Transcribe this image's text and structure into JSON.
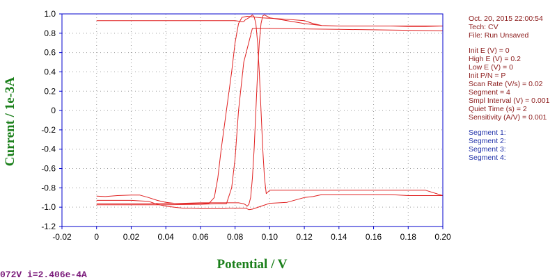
{
  "chart_data": {
    "type": "line",
    "xlabel": "Potential / V",
    "ylabel": "Current / 1e-3A",
    "xlim": [
      -0.02,
      0.2
    ],
    "ylim": [
      -1.2,
      1.0
    ],
    "x_ticks": [
      "-0.02",
      "0",
      "0.02",
      "0.04",
      "0.06",
      "0.08",
      "0.10",
      "0.12",
      "0.14",
      "0.16",
      "0.18",
      "0.20"
    ],
    "y_ticks": [
      "1.0",
      "0.8",
      "0.6",
      "0.4",
      "0.2",
      "0",
      "-0.2",
      "-0.4",
      "-0.6",
      "-0.8",
      "-1.0",
      "-1.2"
    ],
    "grid": "dotted",
    "series": [
      {
        "color": "#e02020",
        "x": [
          0.0,
          0.005,
          0.012,
          0.02,
          0.025,
          0.03,
          0.035,
          0.04,
          0.045,
          0.05,
          0.055,
          0.06,
          0.065,
          0.068,
          0.07,
          0.072,
          0.075,
          0.078,
          0.08,
          0.082,
          0.084,
          0.087,
          0.09,
          0.095,
          0.1,
          0.11,
          0.12,
          0.125,
          0.13,
          0.14,
          0.15,
          0.16,
          0.17,
          0.18,
          0.19,
          0.2,
          0.19,
          0.18,
          0.17,
          0.16,
          0.15,
          0.14,
          0.13,
          0.12,
          0.11,
          0.1,
          0.098,
          0.097,
          0.096,
          0.095,
          0.094,
          0.093,
          0.092,
          0.091,
          0.09,
          0.089,
          0.088,
          0.087,
          0.086,
          0.085,
          0.082,
          0.08,
          0.075,
          0.07,
          0.06,
          0.05,
          0.04,
          0.03,
          0.02,
          0.01,
          0.0
        ],
        "y": [
          -0.885,
          -0.89,
          -0.88,
          -0.875,
          -0.875,
          -0.9,
          -0.93,
          -0.95,
          -0.96,
          -0.965,
          -0.965,
          -0.965,
          -0.96,
          -0.9,
          -0.7,
          -0.4,
          0.0,
          0.4,
          0.7,
          0.9,
          0.965,
          0.975,
          0.97,
          0.96,
          0.955,
          0.945,
          0.93,
          0.9,
          0.88,
          0.875,
          0.875,
          0.875,
          0.875,
          0.875,
          0.875,
          0.875,
          0.87,
          0.87,
          0.875,
          0.875,
          0.875,
          0.875,
          0.88,
          0.9,
          0.93,
          0.96,
          0.98,
          0.99,
          0.98,
          0.9,
          0.7,
          0.4,
          0.0,
          -0.4,
          -0.7,
          -0.9,
          -0.97,
          -0.99,
          -0.975,
          -0.965,
          -0.955,
          -0.955,
          -0.955,
          -0.955,
          -0.955,
          -0.96,
          -0.96,
          -0.965,
          -0.965,
          -0.965,
          -0.965
        ]
      },
      {
        "color": "#e02020",
        "x": [
          0.0,
          0.01,
          0.02,
          0.025,
          0.03,
          0.035,
          0.04,
          0.045,
          0.05,
          0.055,
          0.06,
          0.065,
          0.07,
          0.072,
          0.074,
          0.076,
          0.078,
          0.08,
          0.082,
          0.084,
          0.086,
          0.088,
          0.09,
          0.1,
          0.11,
          0.12,
          0.125,
          0.13,
          0.14,
          0.15,
          0.16,
          0.17,
          0.18,
          0.19,
          0.2,
          0.19,
          0.18,
          0.17,
          0.16,
          0.15,
          0.14,
          0.13,
          0.12,
          0.11,
          0.1,
          0.098,
          0.097,
          0.096,
          0.095,
          0.094,
          0.093,
          0.092,
          0.091,
          0.09,
          0.089,
          0.088,
          0.087,
          0.086,
          0.085,
          0.084,
          0.08,
          0.075,
          0.07,
          0.06,
          0.05,
          0.04,
          0.03,
          0.02,
          0.01,
          0.0
        ],
        "y": [
          -0.93,
          -0.93,
          -0.93,
          -0.935,
          -0.94,
          -0.97,
          -0.99,
          -1.0,
          -1.01,
          -1.01,
          -1.015,
          -1.015,
          -1.015,
          -1.015,
          -1.015,
          -1.01,
          -1.01,
          -1.01,
          -1.01,
          -1.01,
          -1.01,
          -1.025,
          -1.02,
          -0.96,
          -0.95,
          -0.9,
          -0.89,
          -0.87,
          -0.87,
          -0.87,
          -0.87,
          -0.87,
          -0.88,
          -0.88,
          -0.88,
          -0.825,
          -0.825,
          -0.825,
          -0.825,
          -0.825,
          -0.825,
          -0.825,
          -0.825,
          -0.825,
          -0.825,
          -0.86,
          -0.7,
          -0.4,
          0.0,
          0.4,
          0.7,
          0.9,
          0.97,
          0.99,
          0.975,
          0.96,
          0.95,
          0.94,
          0.92,
          0.92,
          0.93,
          0.93,
          0.93,
          0.93,
          0.93,
          0.93,
          0.93,
          0.93,
          0.93,
          0.93
        ]
      },
      {
        "color": "#e02020",
        "x": [
          0.0,
          0.02,
          0.04,
          0.06,
          0.07,
          0.075,
          0.078,
          0.08,
          0.082,
          0.085,
          0.09,
          0.1,
          0.12,
          0.14,
          0.16,
          0.18,
          0.2
        ],
        "y": [
          -0.975,
          -0.975,
          -0.975,
          -0.97,
          -0.965,
          -0.965,
          -0.8,
          -0.5,
          0.0,
          0.5,
          0.85,
          0.85,
          0.845,
          0.84,
          0.835,
          0.83,
          0.825
        ]
      }
    ]
  },
  "info": {
    "datetime": "Oct. 20, 2015   22:00:54",
    "tech": "Tech: CV",
    "file": "File: Run Unsaved",
    "params": [
      "Init E (V) = 0",
      "High E (V) = 0.2",
      "Low E (V) = 0",
      "Init P/N = P",
      "Scan Rate (V/s) = 0.02",
      "Segment = 4",
      "Smpl Interval (V) = 0.001",
      "Quiet Time (s) = 2",
      "Sensitivity (A/V) = 0.001"
    ],
    "segments": [
      "Segment 1:",
      "Segment 2:",
      "Segment 3:",
      "Segment 4:"
    ]
  },
  "status": {
    "text": "072V  i=2.406e-4A"
  },
  "colors": {
    "curve": "#e02020",
    "axis": "#0000cc",
    "title": "#1a7f1a",
    "info_dark": "#8b1a1a",
    "info_blue": "#2233aa",
    "status": "#7a1a7a"
  }
}
